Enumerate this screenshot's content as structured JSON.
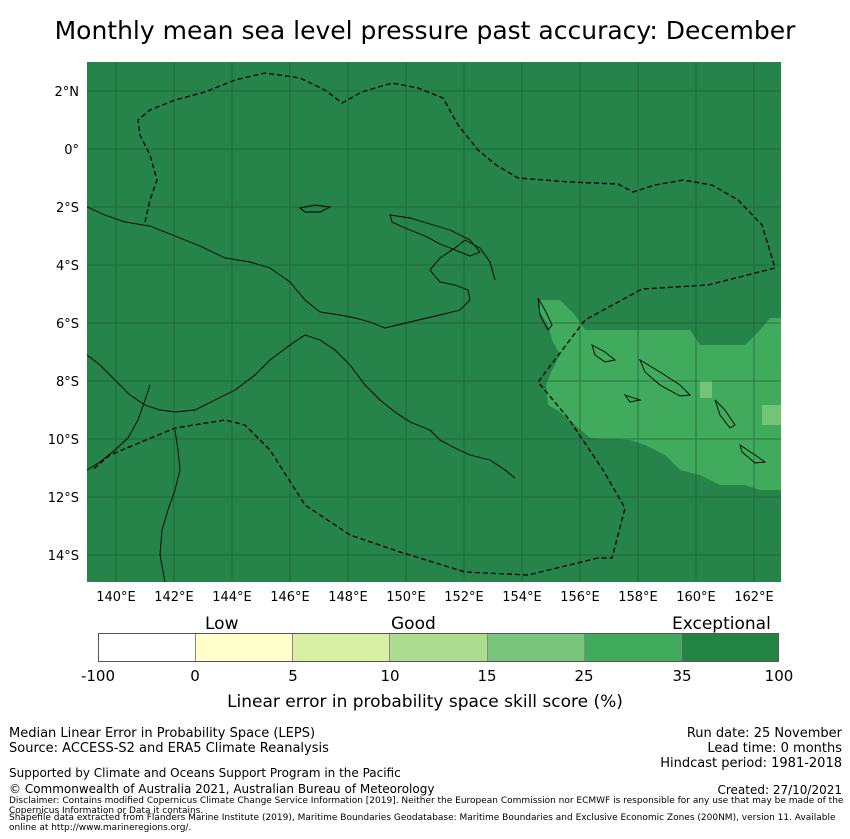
{
  "title": "Monthly mean sea level pressure past accuracy: December",
  "map": {
    "lat_labels": [
      "2°N",
      "0°",
      "2°S",
      "4°S",
      "6°S",
      "8°S",
      "10°S",
      "12°S",
      "14°S"
    ],
    "lon_labels": [
      "140°E",
      "142°E",
      "144°E",
      "146°E",
      "148°E",
      "150°E",
      "152°E",
      "154°E",
      "156°E",
      "158°E",
      "160°E",
      "162°E"
    ],
    "colors": {
      "exceptional": "#26844a",
      "high": "#41ab5d",
      "medium": "#74c476",
      "grid": "#1c5e33"
    }
  },
  "colorbar": {
    "categories": [
      "Low",
      "Good",
      "Exceptional"
    ],
    "ticks": [
      "-100",
      "0",
      "5",
      "10",
      "15",
      "25",
      "35",
      "100"
    ],
    "colors": [
      "#ffffff",
      "#ffffcc",
      "#d9f0a3",
      "#addd8e",
      "#78c679",
      "#41ab5d",
      "#238443"
    ],
    "label": "Linear error in probability space skill score (%)"
  },
  "footer": {
    "left_line1": "Median Linear Error in Probability Space (LEPS)",
    "left_line2": "Source: ACCESS-S2 and ERA5 Climate Reanalysis",
    "support": "Supported by Climate and Oceans Support Program in the Pacific",
    "copyright": "© Commonwealth of Australia 2021, Australian Bureau of Meteorology",
    "run_date": "Run date: 25 November",
    "lead_time": "Lead time: 0 months",
    "hindcast": "Hindcast period: 1981-2018",
    "created": "Created: 27/10/2021",
    "disclaimer": "Disclaimer: Contains modified Copernicus Climate Change Service Information [2019]. Neither the European Commission nor ECMWF is responsible for any use that may be made of the Copernicus Information or Data it contains.",
    "shapefile": "Shapefile data extracted from Flanders Marine Institute (2019), Maritime Boundaries Geodatabase: Maritime Boundaries and Exclusive Economic Zones (200NM), version 11. Available online at http://www.marineregions.org/."
  }
}
